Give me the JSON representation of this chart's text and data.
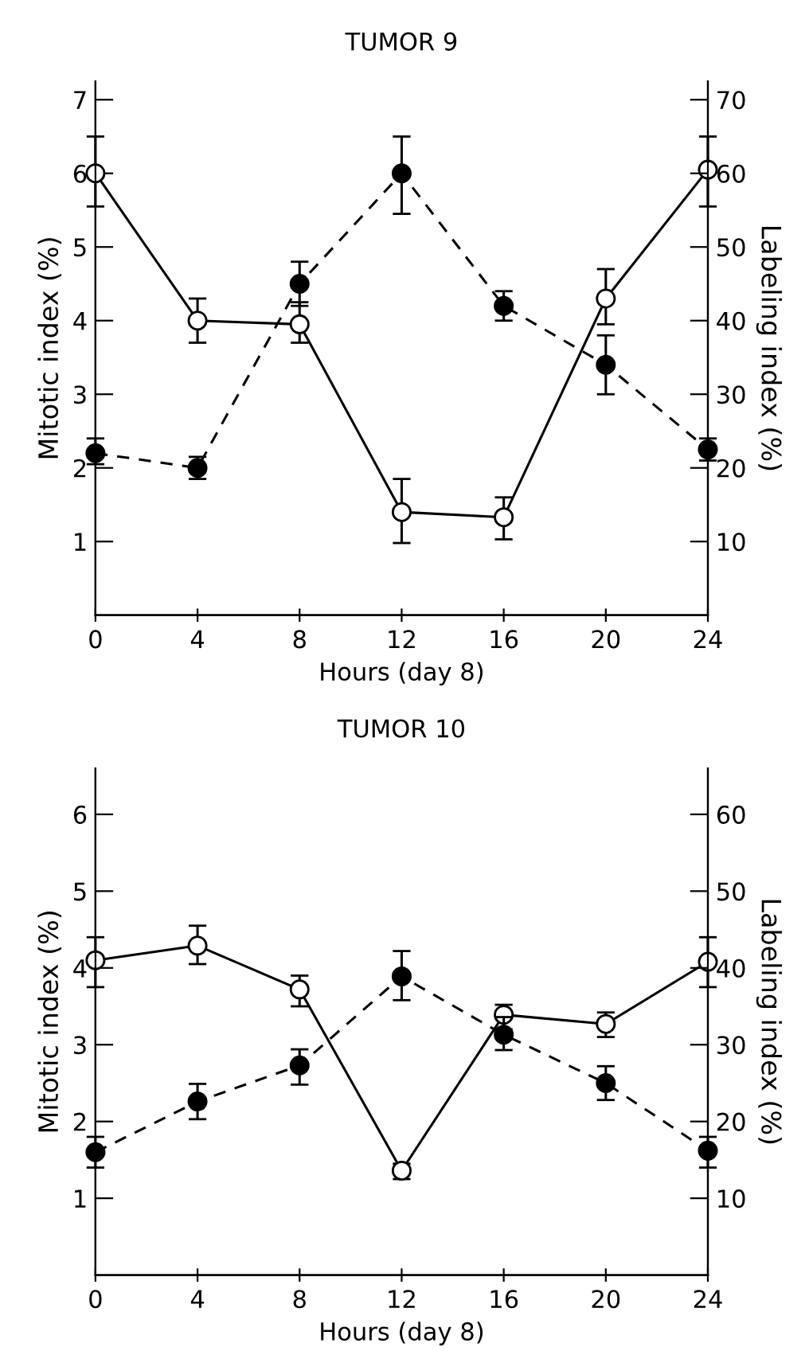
{
  "chart_data": [
    {
      "type": "line",
      "title": "TUMOR 9",
      "xlabel": "Hours (day 8)",
      "ylabel": "Mitotic index (%)",
      "y2label": "Labeling index (%)",
      "x": [
        0,
        4,
        8,
        12,
        16,
        20,
        24
      ],
      "xlim": [
        0,
        24
      ],
      "xticks": [
        0,
        4,
        8,
        12,
        16,
        20,
        24
      ],
      "ylim": [
        0,
        7.25
      ],
      "yticks": [
        1,
        2,
        3,
        4,
        5,
        6,
        7
      ],
      "y2lim": [
        0,
        72.5
      ],
      "y2ticks": [
        10,
        20,
        30,
        40,
        50,
        60,
        70
      ],
      "marker": "circle",
      "grid": false,
      "legend": false,
      "series": [
        {
          "color": "#000000",
          "line_style": "solid",
          "values": [
            6.0,
            4.0,
            3.95,
            1.4,
            1.33,
            4.3,
            6.05
          ],
          "errors": [
            [
              5.55,
              6.5
            ],
            [
              3.7,
              4.3
            ],
            [
              3.7,
              4.25
            ],
            [
              0.98,
              1.85
            ],
            [
              1.03,
              1.6
            ],
            [
              3.95,
              4.7
            ],
            [
              5.55,
              6.5
            ]
          ]
        },
        {
          "color": "#000000",
          "line_style": "dashed",
          "axis": "y2",
          "values": [
            22,
            20,
            45,
            60,
            42,
            34,
            22.5
          ],
          "errors": [
            [
              20.5,
              24
            ],
            [
              18.5,
              21.5
            ],
            [
              42,
              48
            ],
            [
              54.5,
              65
            ],
            [
              40,
              44
            ],
            [
              30,
              38
            ],
            [
              21,
              24
            ]
          ]
        }
      ]
    },
    {
      "type": "line",
      "title": "TUMOR 10",
      "xlabel": "Hours (day 8)",
      "ylabel": "Mitotic index (%)",
      "y2label": "Labeling index (%)",
      "x": [
        0,
        4,
        8,
        12,
        16,
        20,
        24
      ],
      "xlim": [
        0,
        24
      ],
      "xticks": [
        0,
        4,
        8,
        12,
        16,
        20,
        24
      ],
      "ylim": [
        0,
        6.6
      ],
      "yticks": [
        1,
        2,
        3,
        4,
        5,
        6
      ],
      "y2lim": [
        0,
        66
      ],
      "y2ticks": [
        10,
        20,
        30,
        40,
        50,
        60
      ],
      "marker": "circle",
      "grid": false,
      "legend": false,
      "series": [
        {
          "color": "#000000",
          "line_style": "solid",
          "values": [
            4.1,
            4.29,
            3.72,
            1.36,
            3.39,
            3.27,
            4.08
          ],
          "errors": [
            [
              3.75,
              4.4
            ],
            [
              4.05,
              4.55
            ],
            [
              3.5,
              3.9
            ],
            [
              1.25,
              1.45
            ],
            [
              3.2,
              3.52
            ],
            [
              3.1,
              3.42
            ],
            [
              3.75,
              4.4
            ]
          ]
        },
        {
          "color": "#000000",
          "line_style": "dashed",
          "axis": "y2",
          "values": [
            16,
            22.6,
            27.3,
            38.9,
            31.3,
            25,
            16.2
          ],
          "errors": [
            [
              14,
              18
            ],
            [
              20.3,
              24.9
            ],
            [
              24.8,
              29.4
            ],
            [
              35.8,
              42.2
            ],
            [
              29.3,
              33.6
            ],
            [
              22.8,
              27.2
            ],
            [
              14,
              18
            ]
          ]
        }
      ]
    }
  ]
}
